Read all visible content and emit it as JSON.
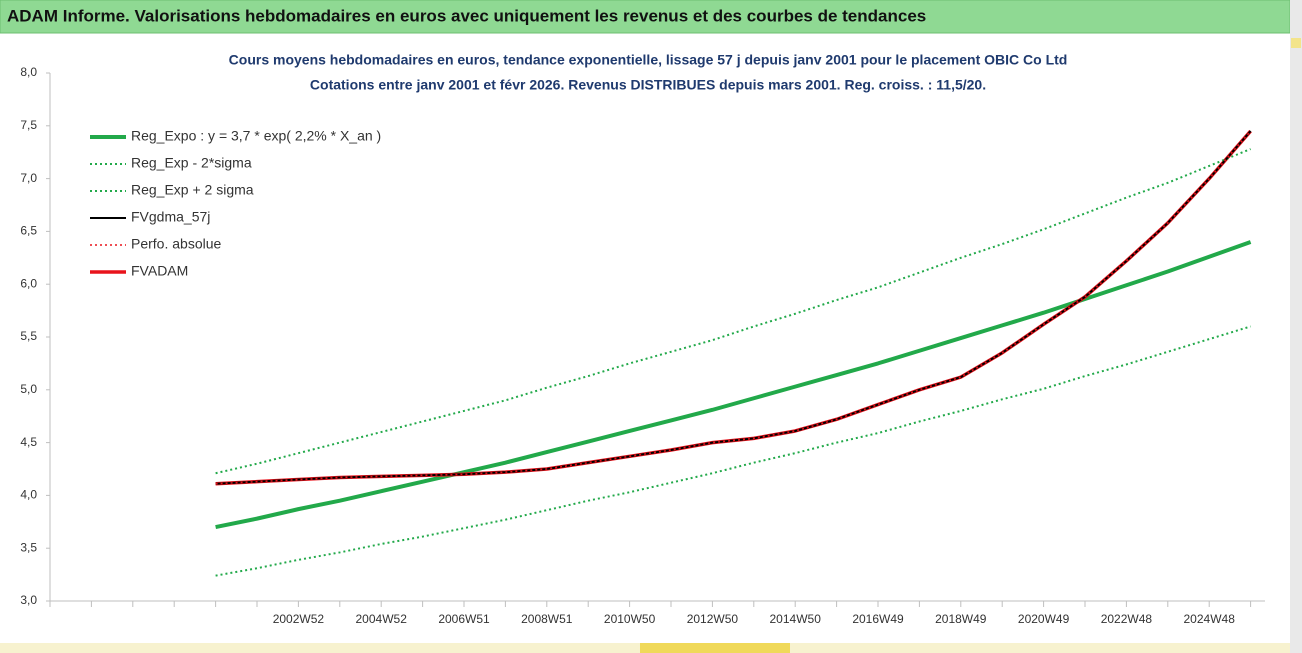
{
  "header": {
    "title": "ADAM Informe. Valorisations hebdomadaires en euros avec uniquement les revenus et des courbes de tendances"
  },
  "chart_data": {
    "type": "line",
    "title": "Cours moyens hebdomadaires en euros, tendance exponentielle, lissage 57 j depuis janv 2001 pour le placement OBIC Co Ltd",
    "subtitle": "Cotations entre janv 2001 et févr 2026. Revenus DISTRIBUES depuis mars 2001. Reg. croiss. : 11,5/20.",
    "categories": [
      null,
      null,
      null,
      null,
      null,
      null,
      "2002W52",
      null,
      "2004W52",
      null,
      "2006W51",
      null,
      "2008W51",
      null,
      "2010W50",
      null,
      "2012W50",
      null,
      "2014W50",
      null,
      "2016W49",
      null,
      "2018W49",
      null,
      "2020W49",
      null,
      "2022W48",
      null,
      "2024W48",
      null
    ],
    "ylim": [
      3,
      8
    ],
    "yticks": [
      {
        "value": 3,
        "label": "3,0"
      },
      {
        "value": 3.5,
        "label": "3,5"
      },
      {
        "value": 4,
        "label": "4,0"
      },
      {
        "value": 4.5,
        "label": "4,5"
      },
      {
        "value": 5,
        "label": "5,0"
      },
      {
        "value": 5.5,
        "label": "5,5"
      },
      {
        "value": 6,
        "label": "6,0"
      },
      {
        "value": 6.5,
        "label": "6,5"
      },
      {
        "value": 7,
        "label": "7,0"
      },
      {
        "value": 7.5,
        "label": "7,5"
      },
      {
        "value": 8,
        "label": "8,0"
      }
    ],
    "grid": false,
    "legend": "top-left",
    "series": [
      {
        "name": "Reg_Expo : y = 3,7 * exp( 2,2% *  X_an )",
        "color": "#22a94a",
        "width": 4,
        "dash": "solid",
        "values": [
          null,
          null,
          null,
          null,
          3.7,
          3.78,
          3.87,
          3.95,
          4.04,
          4.13,
          4.22,
          4.31,
          4.41,
          4.51,
          4.61,
          4.71,
          4.81,
          4.92,
          5.03,
          5.14,
          5.25,
          5.37,
          5.49,
          5.61,
          5.73,
          5.86,
          5.99,
          6.12,
          6.26,
          6.4
        ]
      },
      {
        "name": "Reg_Exp - 2*sigma",
        "color": "#22a94a",
        "width": 2,
        "dash": "dotted",
        "values": [
          null,
          null,
          null,
          null,
          3.24,
          3.31,
          3.39,
          3.46,
          3.54,
          3.61,
          3.69,
          3.77,
          3.86,
          3.95,
          4.03,
          4.12,
          4.21,
          4.31,
          4.4,
          4.5,
          4.59,
          4.7,
          4.8,
          4.91,
          5.01,
          5.13,
          5.24,
          5.36,
          5.48,
          5.6
        ]
      },
      {
        "name": "Reg_Exp + 2 sigma",
        "color": "#22a94a",
        "width": 2,
        "dash": "dotted",
        "values": [
          null,
          null,
          null,
          null,
          4.21,
          4.3,
          4.4,
          4.5,
          4.6,
          4.7,
          4.8,
          4.9,
          5.02,
          5.13,
          5.25,
          5.36,
          5.47,
          5.6,
          5.72,
          5.85,
          5.97,
          6.11,
          6.25,
          6.38,
          6.52,
          6.67,
          6.82,
          6.96,
          7.12,
          7.28
        ]
      },
      {
        "name": "FVgdma_57j",
        "color": "#000000",
        "width": 2,
        "dash": "solid",
        "values": [
          null,
          null,
          null,
          null,
          4.11,
          4.13,
          4.15,
          4.17,
          4.18,
          4.19,
          4.2,
          4.22,
          4.25,
          4.31,
          4.37,
          4.43,
          4.5,
          4.54,
          4.61,
          4.72,
          4.86,
          5.0,
          5.12,
          5.35,
          5.62,
          5.88,
          6.22,
          6.58,
          7.0,
          7.45
        ]
      },
      {
        "name": "Perfo. absolue",
        "color": "#e8131b",
        "width": 1.5,
        "dash": "dotted",
        "values": [
          null,
          null,
          null,
          null,
          4.11,
          4.13,
          4.15,
          4.17,
          4.18,
          4.19,
          4.2,
          4.22,
          4.25,
          4.31,
          4.37,
          4.43,
          4.5,
          4.54,
          4.61,
          4.72,
          4.86,
          5.0,
          5.12,
          5.35,
          5.62,
          5.88,
          6.22,
          6.58,
          7.0,
          7.45
        ]
      },
      {
        "name": "FVADAM",
        "color": "#e8131b",
        "width": 3.5,
        "dash": "solid",
        "values": [
          null,
          null,
          null,
          null,
          4.11,
          4.13,
          4.15,
          4.17,
          4.18,
          4.19,
          4.2,
          4.22,
          4.25,
          4.31,
          4.37,
          4.43,
          4.5,
          4.54,
          4.61,
          4.72,
          4.86,
          5.0,
          5.12,
          5.35,
          5.62,
          5.88,
          6.22,
          6.58,
          7.0,
          7.45
        ]
      }
    ]
  }
}
